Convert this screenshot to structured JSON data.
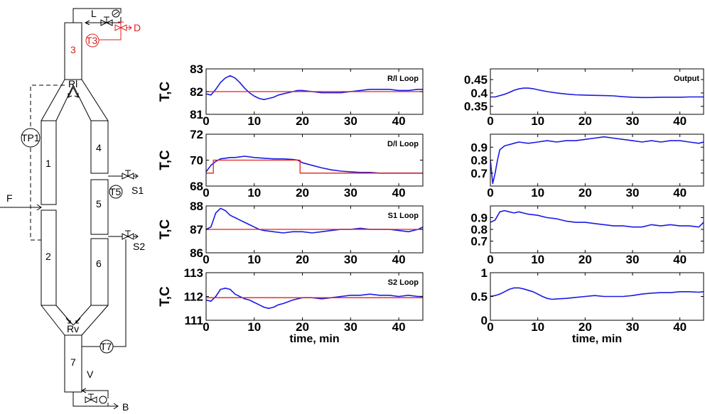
{
  "diagram": {
    "sections": [
      "3",
      "1",
      "4",
      "5",
      "2",
      "6",
      "7"
    ],
    "sensors": [
      "T3",
      "TP1",
      "T5",
      "T7"
    ],
    "streams": [
      "L",
      "D",
      "F",
      "S1",
      "S2",
      "B"
    ],
    "points": [
      "Rl",
      "Rv",
      "V"
    ]
  },
  "colors": {
    "measured": "#1a1ae6",
    "setpoint": "#e0201c",
    "highlight": "#e0201c"
  },
  "chart_data": [
    {
      "type": "line",
      "title": "R/l Loop",
      "ylabel": "T,C",
      "xlabel": "",
      "xlim": [
        0,
        45
      ],
      "ylim": [
        81,
        83
      ],
      "xticks": [
        "0",
        "10",
        "20",
        "30",
        "40"
      ],
      "yticks": [
        "81",
        "82",
        "83"
      ],
      "series": [
        {
          "role": "measured",
          "x": [
            0,
            1,
            2,
            3,
            4,
            5,
            6,
            7,
            8,
            9,
            10,
            11,
            12,
            13,
            14,
            15,
            16,
            17,
            18,
            19,
            20,
            22,
            24,
            26,
            28,
            30,
            32,
            34,
            36,
            38,
            40,
            42,
            44,
            45
          ],
          "y": [
            81.9,
            81.85,
            82.1,
            82.4,
            82.6,
            82.7,
            82.6,
            82.4,
            82.15,
            81.95,
            81.8,
            81.7,
            81.65,
            81.7,
            81.75,
            81.85,
            81.9,
            81.95,
            82.0,
            82.05,
            82.05,
            82.0,
            81.95,
            81.95,
            81.95,
            82.0,
            82.05,
            82.1,
            82.1,
            82.1,
            82.05,
            82.05,
            82.1,
            82.1
          ]
        },
        {
          "role": "setpoint",
          "x": [
            0,
            45
          ],
          "y": [
            82,
            82
          ]
        }
      ]
    },
    {
      "type": "line",
      "title": "D/l Loop",
      "ylabel": "T,C",
      "xlabel": "",
      "xlim": [
        0,
        45
      ],
      "ylim": [
        68,
        72
      ],
      "xticks": [
        "0",
        "10",
        "20",
        "30",
        "40"
      ],
      "yticks": [
        "68",
        "70",
        "72"
      ],
      "series": [
        {
          "role": "measured",
          "x": [
            0,
            1,
            2,
            3,
            4,
            5,
            6,
            8,
            10,
            12,
            14,
            16,
            18,
            19,
            20,
            22,
            24,
            26,
            28,
            30,
            32,
            34,
            36,
            38,
            40,
            42,
            44,
            45
          ],
          "y": [
            69.1,
            69.6,
            69.9,
            70.1,
            70.15,
            70.2,
            70.2,
            70.3,
            70.2,
            70.15,
            70.1,
            70.1,
            70.05,
            70.0,
            69.8,
            69.6,
            69.4,
            69.25,
            69.15,
            69.1,
            69.05,
            69.05,
            69.0,
            69.0,
            69.0,
            69.0,
            69.0,
            69.0
          ]
        },
        {
          "role": "setpoint",
          "x": [
            0,
            1.5,
            1.5,
            19.5,
            19.5,
            45
          ],
          "y": [
            69,
            69,
            70,
            70,
            69,
            69
          ]
        }
      ]
    },
    {
      "type": "line",
      "title": "S1 Loop",
      "ylabel": "T,C",
      "xlabel": "",
      "xlim": [
        0,
        45
      ],
      "ylim": [
        86,
        88
      ],
      "xticks": [
        "0",
        "10",
        "20",
        "30",
        "40"
      ],
      "yticks": [
        "86",
        "87",
        "88"
      ],
      "series": [
        {
          "role": "measured",
          "x": [
            0,
            1,
            2,
            3,
            4,
            5,
            6,
            7,
            8,
            9,
            10,
            11,
            12,
            14,
            16,
            18,
            20,
            22,
            24,
            26,
            28,
            30,
            32,
            34,
            36,
            38,
            40,
            42,
            44,
            45
          ],
          "y": [
            87.0,
            87.1,
            87.7,
            87.9,
            87.8,
            87.6,
            87.5,
            87.4,
            87.3,
            87.2,
            87.1,
            87.0,
            86.95,
            86.9,
            86.85,
            86.9,
            86.9,
            86.85,
            86.9,
            86.95,
            87.0,
            87.0,
            87.05,
            87.0,
            87.0,
            87.0,
            86.95,
            86.9,
            87.0,
            87.1
          ]
        },
        {
          "role": "setpoint",
          "x": [
            0,
            45
          ],
          "y": [
            87,
            87
          ]
        }
      ]
    },
    {
      "type": "line",
      "title": "S2 Loop",
      "ylabel": "T,C",
      "xlabel": "time, min",
      "xlim": [
        0,
        45
      ],
      "ylim": [
        111,
        113
      ],
      "xticks": [
        "0",
        "10",
        "20",
        "30",
        "40"
      ],
      "yticks": [
        "111",
        "112",
        "113"
      ],
      "series": [
        {
          "role": "measured",
          "x": [
            0,
            1,
            2,
            3,
            4,
            5,
            6,
            7,
            8,
            9,
            10,
            11,
            12,
            13,
            14,
            15,
            16,
            18,
            20,
            22,
            24,
            26,
            28,
            30,
            32,
            34,
            36,
            38,
            40,
            42,
            44,
            45
          ],
          "y": [
            111.85,
            111.8,
            112.0,
            112.3,
            112.35,
            112.3,
            112.1,
            112.0,
            111.9,
            111.85,
            111.75,
            111.65,
            111.55,
            111.5,
            111.55,
            111.65,
            111.7,
            111.85,
            111.95,
            111.95,
            111.9,
            111.95,
            112.0,
            112.05,
            112.05,
            112.1,
            112.05,
            112.05,
            112.0,
            112.05,
            112.0,
            112.0
          ]
        },
        {
          "role": "setpoint",
          "x": [
            0,
            45
          ],
          "y": [
            111.95,
            111.95
          ]
        }
      ]
    },
    {
      "type": "line",
      "title": "Output",
      "ylabel": "",
      "xlabel": "",
      "xlim": [
        0,
        45
      ],
      "ylim": [
        0.32,
        0.49
      ],
      "xticks": [
        "0",
        "10",
        "20",
        "30",
        "40"
      ],
      "yticks": [
        "0.35",
        "0.4",
        "0.45"
      ],
      "series": [
        {
          "role": "measured",
          "x": [
            0,
            1,
            2,
            3,
            4,
            5,
            6,
            7,
            8,
            9,
            10,
            12,
            14,
            16,
            18,
            20,
            22,
            24,
            26,
            28,
            30,
            32,
            34,
            36,
            38,
            40,
            42,
            44,
            45
          ],
          "y": [
            0.385,
            0.385,
            0.39,
            0.395,
            0.402,
            0.41,
            0.415,
            0.418,
            0.418,
            0.416,
            0.412,
            0.405,
            0.4,
            0.396,
            0.393,
            0.392,
            0.391,
            0.39,
            0.389,
            0.386,
            0.384,
            0.383,
            0.383,
            0.384,
            0.384,
            0.384,
            0.385,
            0.385,
            0.385
          ]
        }
      ]
    },
    {
      "type": "line",
      "title": "",
      "ylabel": "",
      "xlabel": "",
      "xlim": [
        0,
        45
      ],
      "ylim": [
        0.6,
        1.0
      ],
      "xticks": [
        "0",
        "10",
        "20",
        "30",
        "40"
      ],
      "yticks": [
        "0.7",
        "0.8",
        "0.9"
      ],
      "series": [
        {
          "role": "measured",
          "x": [
            0,
            0.5,
            1,
            1.5,
            2,
            3,
            4,
            5,
            6,
            8,
            10,
            12,
            14,
            16,
            18,
            20,
            22,
            24,
            26,
            28,
            30,
            32,
            34,
            36,
            38,
            40,
            42,
            44,
            45
          ],
          "y": [
            0.8,
            0.62,
            0.7,
            0.8,
            0.88,
            0.91,
            0.92,
            0.93,
            0.94,
            0.93,
            0.94,
            0.95,
            0.94,
            0.95,
            0.95,
            0.96,
            0.97,
            0.98,
            0.97,
            0.96,
            0.95,
            0.94,
            0.95,
            0.94,
            0.95,
            0.95,
            0.94,
            0.93,
            0.94
          ]
        }
      ]
    },
    {
      "type": "line",
      "title": "",
      "ylabel": "",
      "xlabel": "",
      "xlim": [
        0,
        45
      ],
      "ylim": [
        0.6,
        1.0
      ],
      "xticks": [
        "0",
        "10",
        "20",
        "30",
        "40"
      ],
      "yticks": [
        "0.7",
        "0.8",
        "0.9"
      ],
      "series": [
        {
          "role": "measured",
          "x": [
            0,
            1,
            2,
            3,
            4,
            5,
            6,
            8,
            10,
            12,
            14,
            16,
            18,
            20,
            22,
            24,
            26,
            28,
            30,
            32,
            34,
            36,
            38,
            40,
            42,
            44,
            45
          ],
          "y": [
            0.86,
            0.88,
            0.95,
            0.96,
            0.95,
            0.94,
            0.95,
            0.93,
            0.92,
            0.9,
            0.89,
            0.87,
            0.86,
            0.86,
            0.85,
            0.84,
            0.83,
            0.83,
            0.82,
            0.82,
            0.84,
            0.83,
            0.84,
            0.83,
            0.83,
            0.82,
            0.86
          ]
        }
      ]
    },
    {
      "type": "line",
      "title": "",
      "ylabel": "",
      "xlabel": "time, min",
      "xlim": [
        0,
        45
      ],
      "ylim": [
        0,
        1
      ],
      "xticks": [
        "0",
        "10",
        "20",
        "30",
        "40"
      ],
      "yticks": [
        "0",
        "0.5",
        "1"
      ],
      "series": [
        {
          "role": "measured",
          "x": [
            0,
            1,
            2,
            3,
            4,
            5,
            6,
            7,
            8,
            9,
            10,
            11,
            12,
            13,
            14,
            16,
            18,
            20,
            22,
            24,
            26,
            28,
            30,
            32,
            34,
            36,
            38,
            40,
            42,
            44,
            45
          ],
          "y": [
            0.5,
            0.52,
            0.55,
            0.6,
            0.65,
            0.68,
            0.68,
            0.66,
            0.63,
            0.6,
            0.55,
            0.5,
            0.46,
            0.44,
            0.45,
            0.46,
            0.48,
            0.5,
            0.52,
            0.5,
            0.5,
            0.5,
            0.52,
            0.55,
            0.57,
            0.58,
            0.58,
            0.6,
            0.6,
            0.59,
            0.6
          ]
        }
      ]
    }
  ]
}
